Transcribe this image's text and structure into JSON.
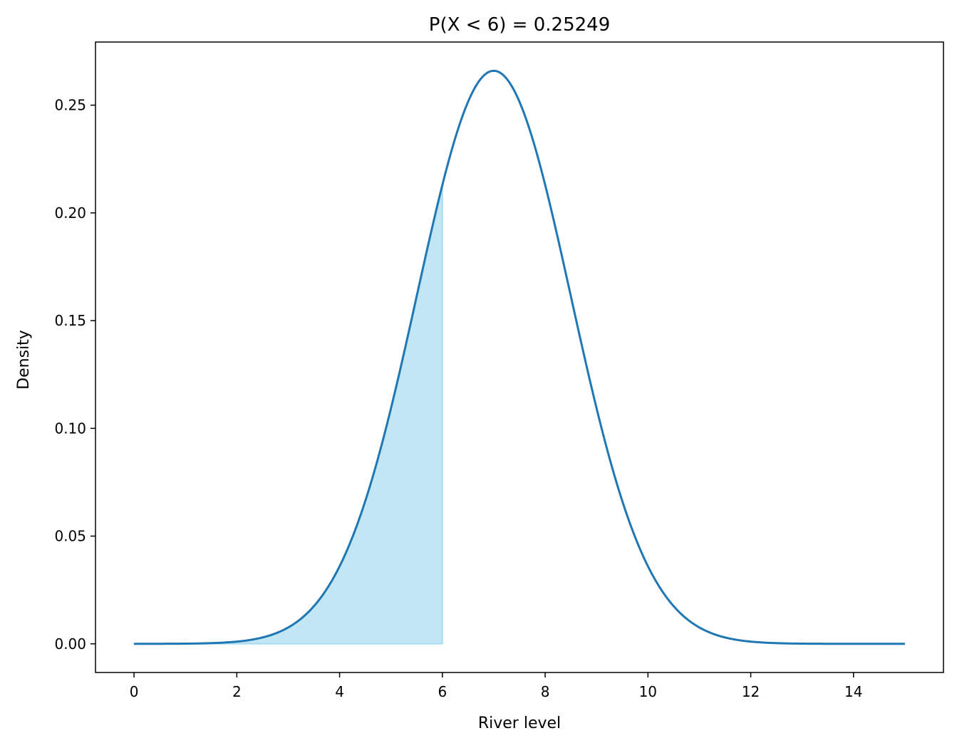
{
  "chart_data": {
    "type": "area",
    "title": "P(X < 6) = 0.25249",
    "xlabel": "River level",
    "ylabel": "Density",
    "distribution": "normal",
    "mean": 7,
    "sd": 1.5,
    "curve_x_range": [
      0,
      15
    ],
    "shaded_x_range": [
      0,
      6
    ],
    "shaded_probability": 0.25249,
    "xlim": [
      -0.75,
      15.75
    ],
    "ylim": [
      -0.0133,
      0.2793
    ],
    "xticks": [
      0,
      2,
      4,
      6,
      8,
      10,
      12,
      14
    ],
    "xtick_labels": [
      "0",
      "2",
      "4",
      "6",
      "8",
      "10",
      "12",
      "14"
    ],
    "yticks": [
      0,
      0.05,
      0.1,
      0.15,
      0.2,
      0.25
    ],
    "ytick_labels": [
      "0.00",
      "0.05",
      "0.10",
      "0.15",
      "0.20",
      "0.25"
    ],
    "grid": false,
    "colors": {
      "line": "#1f77b4",
      "fill": "#87ceeb"
    }
  }
}
